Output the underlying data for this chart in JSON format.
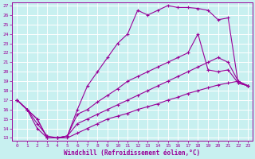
{
  "background_color": "#c8f0f0",
  "line_color": "#990099",
  "grid_color": "#ffffff",
  "xlabel": "Windchill (Refroidissement éolien,°C)",
  "xlabel_color": "#990099",
  "yticks": [
    13,
    14,
    15,
    16,
    17,
    18,
    19,
    20,
    21,
    22,
    23,
    24,
    25,
    26,
    27
  ],
  "xticks": [
    0,
    1,
    2,
    3,
    4,
    5,
    6,
    7,
    8,
    9,
    10,
    11,
    12,
    13,
    14,
    15,
    16,
    17,
    18,
    19,
    20,
    21,
    22,
    23
  ],
  "xlim": [
    -0.5,
    23.4
  ],
  "ylim": [
    12.7,
    27.3
  ],
  "series": [
    {
      "x": [
        0,
        1,
        2,
        3,
        4,
        5,
        6,
        7,
        8,
        9,
        10,
        11,
        12,
        13,
        14,
        15,
        16,
        17,
        18,
        19,
        20,
        21,
        22,
        23
      ],
      "y": [
        17.0,
        16.0,
        15.0,
        13.0,
        13.0,
        13.2,
        16.0,
        18.5,
        20.0,
        21.5,
        23.0,
        24.0,
        26.5,
        26.0,
        26.5,
        27.0,
        26.8,
        26.8,
        26.7,
        26.5,
        25.5,
        25.7,
        18.8,
        18.5
      ]
    },
    {
      "x": [
        0,
        1,
        2,
        3,
        4,
        5,
        6,
        7,
        8,
        9,
        10,
        11,
        12,
        13,
        14,
        15,
        16,
        17,
        18,
        19,
        20,
        21,
        22,
        23
      ],
      "y": [
        17.0,
        16.0,
        15.0,
        13.0,
        13.0,
        13.2,
        15.5,
        16.0,
        16.8,
        17.5,
        18.2,
        19.0,
        19.5,
        20.0,
        20.5,
        21.0,
        21.5,
        22.0,
        24.0,
        20.2,
        20.0,
        20.2,
        18.8,
        18.5
      ]
    },
    {
      "x": [
        0,
        1,
        2,
        3,
        4,
        5,
        6,
        7,
        8,
        9,
        10,
        11,
        12,
        13,
        14,
        15,
        16,
        17,
        18,
        19,
        20,
        21,
        22,
        23
      ],
      "y": [
        17.0,
        16.0,
        14.5,
        13.2,
        13.0,
        13.2,
        14.5,
        15.0,
        15.5,
        16.0,
        16.5,
        17.0,
        17.5,
        18.0,
        18.5,
        19.0,
        19.5,
        20.0,
        20.5,
        21.0,
        21.5,
        21.0,
        19.0,
        18.5
      ]
    },
    {
      "x": [
        0,
        1,
        2,
        3,
        4,
        5,
        6,
        7,
        8,
        9,
        10,
        11,
        12,
        13,
        14,
        15,
        16,
        17,
        18,
        19,
        20,
        21,
        22,
        23
      ],
      "y": [
        17.0,
        16.0,
        14.0,
        13.0,
        13.0,
        13.0,
        13.5,
        14.0,
        14.5,
        15.0,
        15.3,
        15.6,
        16.0,
        16.3,
        16.6,
        17.0,
        17.3,
        17.7,
        18.0,
        18.3,
        18.6,
        18.8,
        19.0,
        18.5
      ]
    }
  ]
}
